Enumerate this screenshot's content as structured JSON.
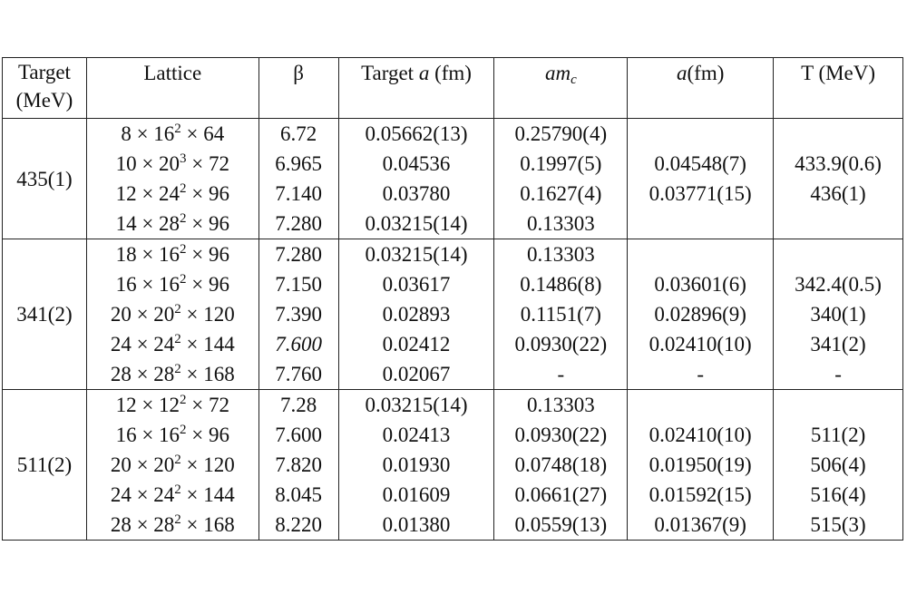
{
  "headers": {
    "target_line1": "Target",
    "target_line2": "(MeV)",
    "lattice": "Lattice",
    "beta": "β",
    "target_a_pre": "Target ",
    "target_a_var": "a",
    "target_a_post": " (fm)",
    "amc_base": "am",
    "amc_sub": "c",
    "a_var": "a",
    "a_post": "(fm)",
    "temp": "T (MeV)"
  },
  "groups": [
    {
      "target": "435(1)",
      "rows": [
        {
          "lat": {
            "n": "8",
            "s": "16",
            "e": "2",
            "t": "64"
          },
          "beta": "6.72",
          "target_a": "0.05662(13)",
          "amc": "0.25790(4)",
          "a": "",
          "T": "",
          "bold": {
            "lat": true,
            "beta": true,
            "target_a": true,
            "amc": true
          }
        },
        {
          "lat": {
            "n": "10",
            "s": "20",
            "e": "3",
            "t": "72"
          },
          "beta": "6.965",
          "target_a": "0.04536",
          "amc": "0.1997(5)",
          "a": "0.04548(7)",
          "T": "433.9(0.6)",
          "bold": {}
        },
        {
          "lat": {
            "n": "12",
            "s": "24",
            "e": "2",
            "t": "96"
          },
          "beta": "7.140",
          "target_a": "0.03780",
          "amc": "0.1627(4)",
          "a": "0.03771(15)",
          "T": "436(1)",
          "bold": {}
        },
        {
          "lat": {
            "n": "14",
            "s": "28",
            "e": "2",
            "t": "96"
          },
          "beta": "7.280",
          "target_a": "0.03215(14)",
          "amc": "0.13303",
          "a": "",
          "T": "",
          "bold": {
            "lat": true,
            "beta": true,
            "amc": true
          }
        }
      ]
    },
    {
      "target": "341(2)",
      "rows": [
        {
          "lat": {
            "n": "18",
            "s": "16",
            "e": "2",
            "t": "96"
          },
          "beta": "7.280",
          "target_a": "0.03215(14)",
          "amc": "0.13303",
          "a": "",
          "T": "",
          "bold": {
            "lat": true,
            "beta": true,
            "target_a": true,
            "amc": true
          }
        },
        {
          "lat": {
            "n": "16",
            "s": "16",
            "e": "2",
            "t": "96"
          },
          "beta": "7.150",
          "target_a": "0.03617",
          "amc": "0.1486(8)",
          "a": "0.03601(6)",
          "T": "342.4(0.5)",
          "bold": {}
        },
        {
          "lat": {
            "n": "20",
            "s": "20",
            "e": "2",
            "t": "120"
          },
          "beta": "7.390",
          "target_a": "0.02893",
          "amc": "0.1151(7)",
          "a": "0.02896(9)",
          "T": "340(1)",
          "bold": {}
        },
        {
          "lat": {
            "n": "24",
            "s": "24",
            "e": "2",
            "t": "144"
          },
          "beta": "7.600",
          "target_a": "0.02412",
          "amc": "0.0930(22)",
          "a": "0.02410(10)",
          "T": "341(2)",
          "bold": {},
          "beta_italic": true
        },
        {
          "lat": {
            "n": "28",
            "s": "28",
            "e": "2",
            "t": "168"
          },
          "beta": "7.760",
          "target_a": "0.02067",
          "amc": "-",
          "a": "-",
          "T": "-",
          "bold": {}
        }
      ]
    },
    {
      "target": "511(2)",
      "rows": [
        {
          "lat": {
            "n": "12",
            "s": "12",
            "e": "2",
            "t": "72"
          },
          "beta": "7.28",
          "target_a": "0.03215(14)",
          "amc": "0.13303",
          "a": "",
          "T": "",
          "bold": {
            "lat": true,
            "beta": true,
            "target_a": true,
            "amc": true
          }
        },
        {
          "lat": {
            "n": "16",
            "s": "16",
            "e": "2",
            "t": "96"
          },
          "beta": "7.600",
          "target_a": "0.02413",
          "amc": "0.0930(22)",
          "a": "0.02410(10)",
          "T": "511(2)",
          "bold": {}
        },
        {
          "lat": {
            "n": "20",
            "s": "20",
            "e": "2",
            "t": "120"
          },
          "beta": "7.820",
          "target_a": "0.01930",
          "amc": "0.0748(18)",
          "a": "0.01950(19)",
          "T": "506(4)",
          "bold": {}
        },
        {
          "lat": {
            "n": "24",
            "s": "24",
            "e": "2",
            "t": "144"
          },
          "beta": "8.045",
          "target_a": "0.01609",
          "amc": "0.0661(27)",
          "a": "0.01592(15)",
          "T": "516(4)",
          "bold": {}
        },
        {
          "lat": {
            "n": "28",
            "s": "28",
            "e": "2",
            "t": "168"
          },
          "beta": "8.220",
          "target_a": "0.01380",
          "amc": "0.0559(13)",
          "a": "0.01367(9)",
          "T": "515(3)",
          "bold": {}
        }
      ]
    }
  ]
}
